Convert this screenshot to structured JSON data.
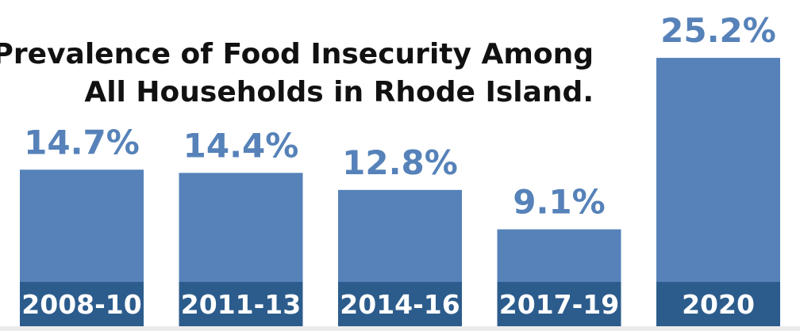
{
  "chart_data": {
    "type": "bar",
    "title": "Prevalence of Food Insecurity Among All Households in Rhode Island.",
    "title_lines": [
      "Prevalence of Food Insecurity Among",
      "All Households in Rhode Island."
    ],
    "categories": [
      "2008-10",
      "2011-13",
      "2014-16",
      "2017-19",
      "2020"
    ],
    "values": [
      14.7,
      14.4,
      12.8,
      9.1,
      25.2
    ],
    "value_labels": [
      "14.7%",
      "14.4%",
      "12.8%",
      "9.1%",
      "25.2%"
    ],
    "unit": "%",
    "xlabel": "",
    "ylabel": "",
    "ylim": [
      0,
      27.5
    ],
    "grid": false,
    "legend": "none"
  },
  "colors": {
    "bar": "#5682b9",
    "bar_base": "#2c5c8c",
    "value_text": "#5682b9",
    "category_text": "#ffffff",
    "title_text": "#111111",
    "background": "#ffffff",
    "floor": "#ececec"
  }
}
